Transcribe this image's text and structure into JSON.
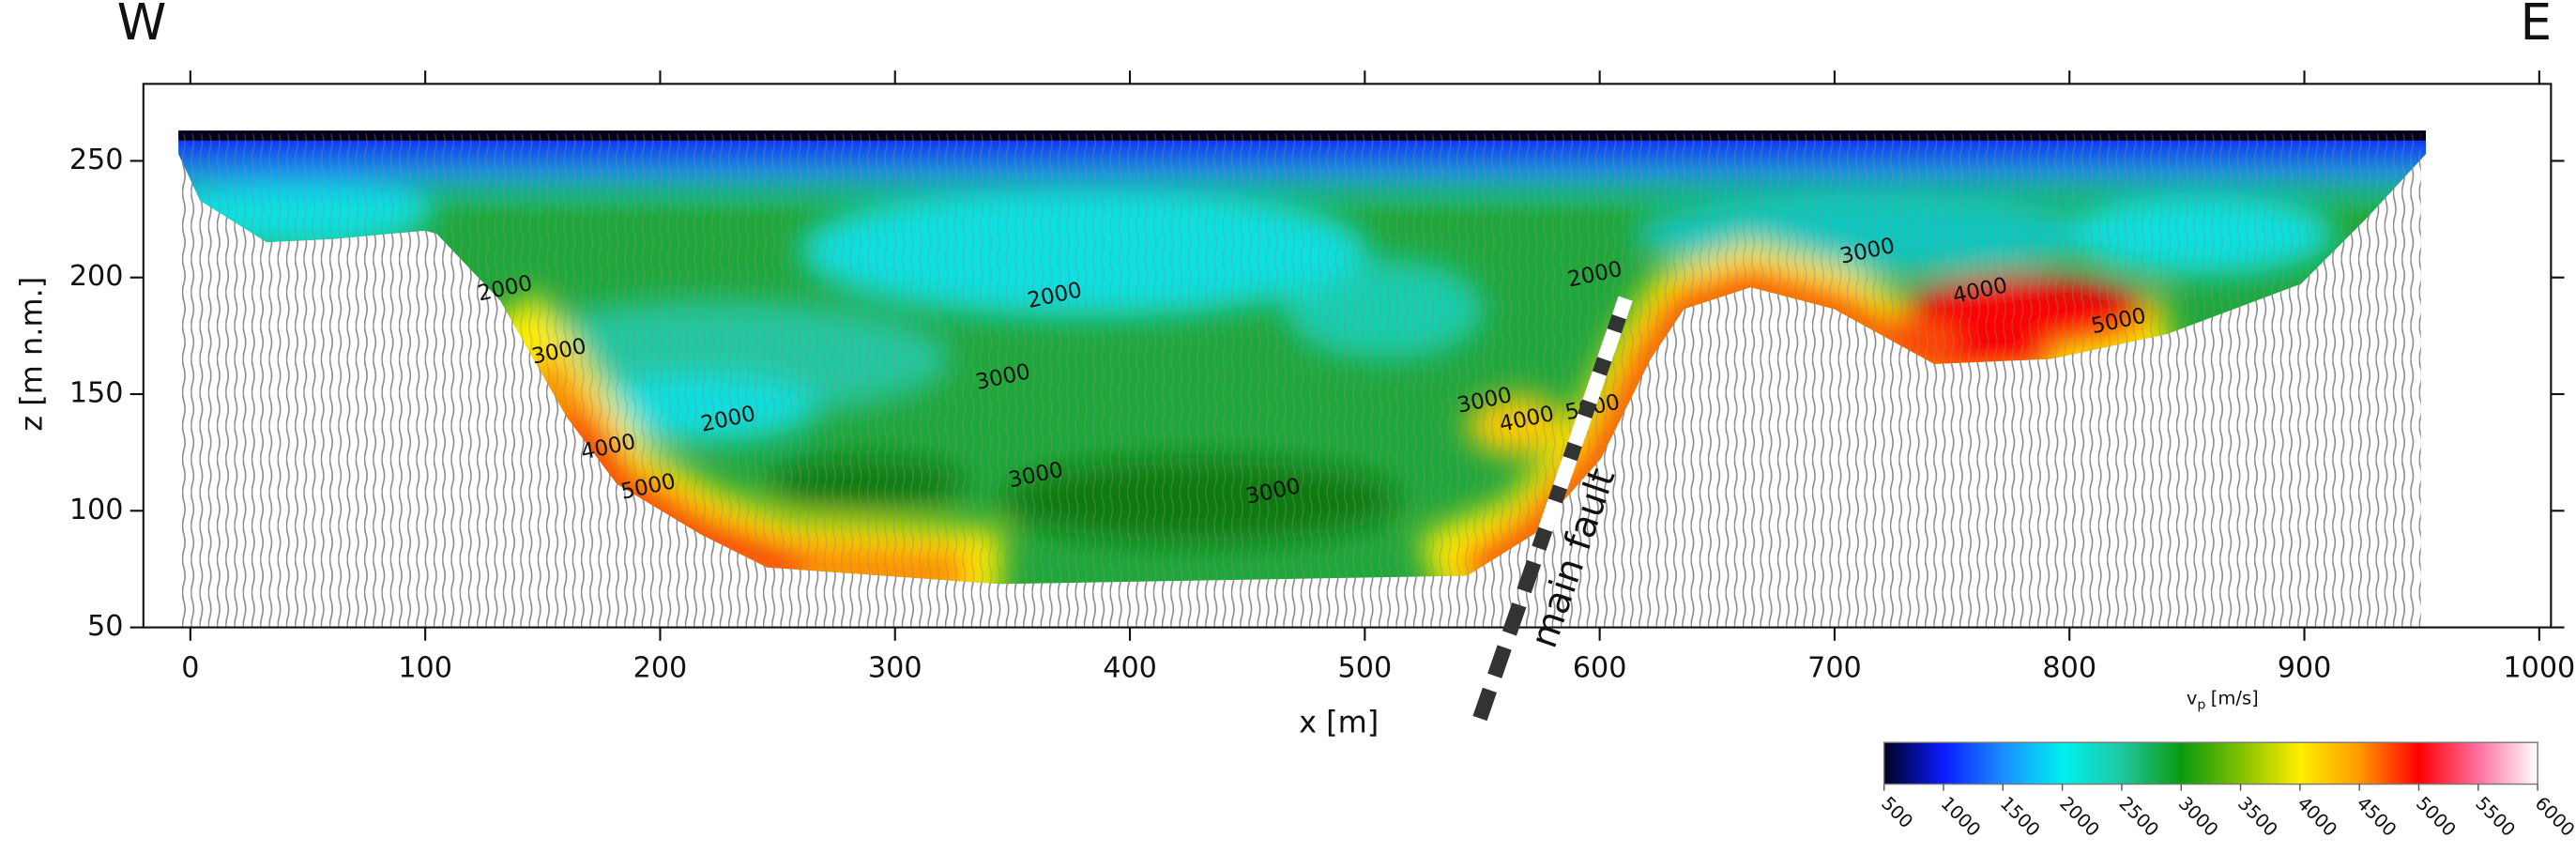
{
  "chart_data": {
    "type": "tomogram",
    "west_label": "W",
    "east_label": "E",
    "xlabel": "x [m]",
    "ylabel": "z [m n.m.]",
    "xlim": [
      -20,
      1005
    ],
    "ylim": [
      50,
      283
    ],
    "xticks": [
      0,
      100,
      200,
      300,
      400,
      500,
      600,
      700,
      800,
      900,
      1000
    ],
    "yticks": [
      50,
      100,
      150,
      200,
      250
    ],
    "contour_labels": [
      {
        "x": 134,
        "z": 195,
        "value": 2000
      },
      {
        "x": 157,
        "z": 168,
        "value": 3000
      },
      {
        "x": 178,
        "z": 127,
        "value": 4000
      },
      {
        "x": 195,
        "z": 110,
        "value": 5000
      },
      {
        "x": 229,
        "z": 139,
        "value": 2000
      },
      {
        "x": 368,
        "z": 192,
        "value": 2000
      },
      {
        "x": 346,
        "z": 157,
        "value": 3000
      },
      {
        "x": 360,
        "z": 115,
        "value": 3000
      },
      {
        "x": 461,
        "z": 108,
        "value": 3000
      },
      {
        "x": 551,
        "z": 147,
        "value": 3000
      },
      {
        "x": 569,
        "z": 139,
        "value": 4000
      },
      {
        "x": 597,
        "z": 144,
        "value": 5000
      },
      {
        "x": 598,
        "z": 201,
        "value": 2000
      },
      {
        "x": 714,
        "z": 211,
        "value": 3000
      },
      {
        "x": 762,
        "z": 194,
        "value": 4000
      },
      {
        "x": 821,
        "z": 181,
        "value": 5000
      }
    ],
    "fault": {
      "label": "main fault",
      "x": [
        549,
        611
      ],
      "z": [
        11,
        191
      ]
    },
    "colorbar": {
      "label": "v",
      "label_sub": "p",
      "label_unit": "[m/s]",
      "lim": [
        500,
        6000
      ],
      "ticks": [
        500,
        1000,
        1500,
        2000,
        2500,
        3000,
        3500,
        4000,
        4500,
        5000,
        5500,
        6000
      ],
      "colors": [
        "#000022",
        "#0a1cff",
        "#1a8cff",
        "#00f0f0",
        "#1ec8a0",
        "#0a9a10",
        "#80c000",
        "#ffee00",
        "#ff9a00",
        "#ff0000",
        "#ff70a0",
        "#ffffff"
      ]
    }
  }
}
